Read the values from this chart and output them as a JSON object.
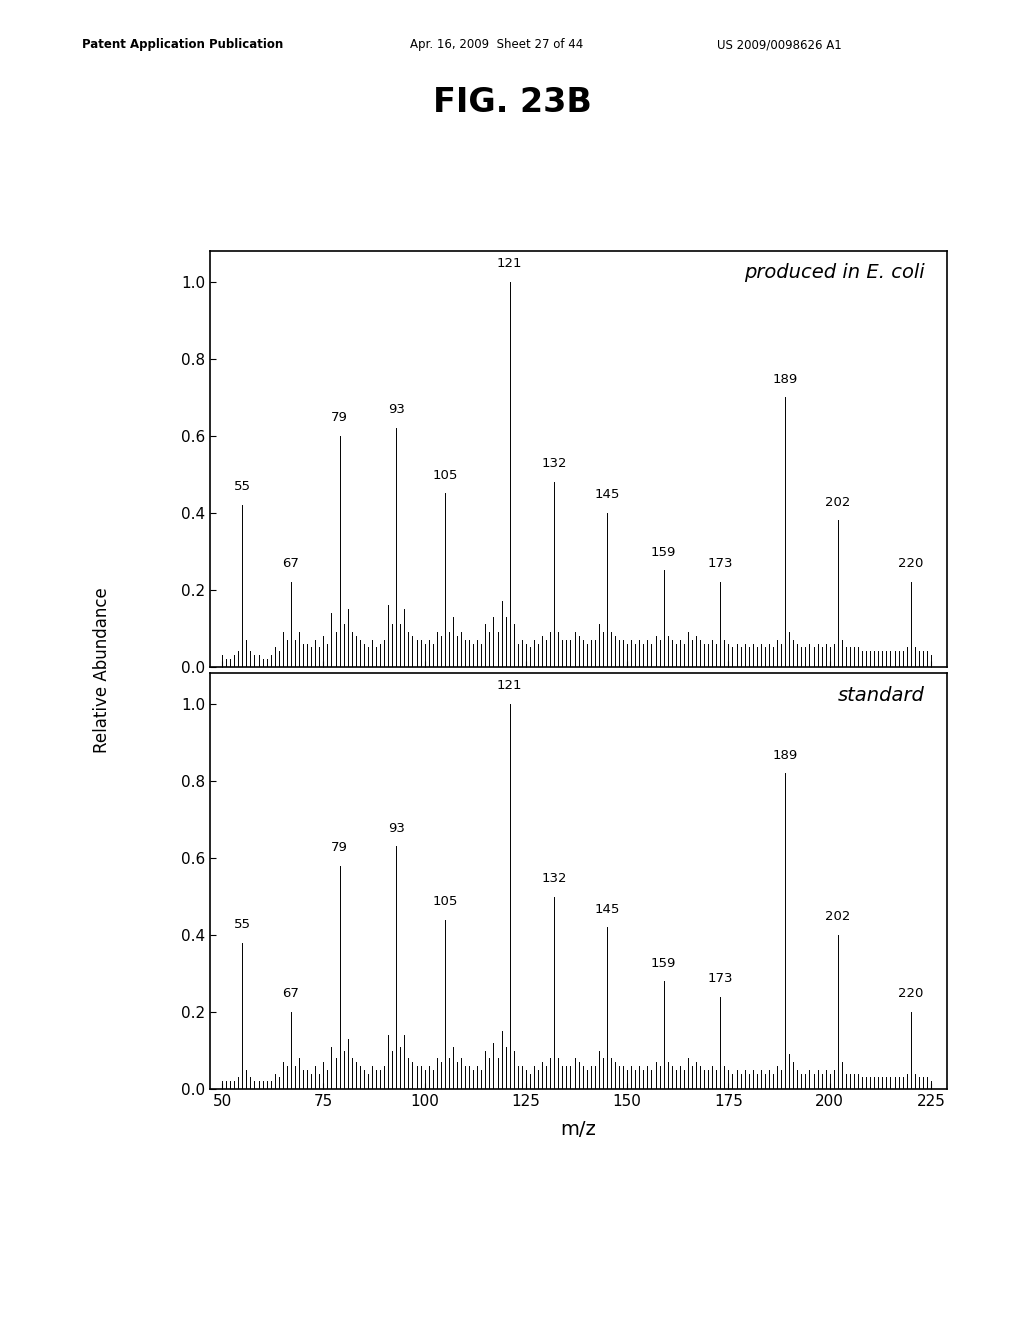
{
  "title": "FIG. 23B",
  "xlabel": "m/z",
  "ylabel": "Relative Abundance",
  "header_left": "Patent Application Publication",
  "header_mid": "Apr. 16, 2009  Sheet 27 of 44",
  "header_right": "US 2009/0098626 A1",
  "panel1_label": "produced in E. coli",
  "panel2_label": "standard",
  "xlim": [
    47,
    229
  ],
  "ylim": [
    0.0,
    1.08
  ],
  "xticks": [
    50,
    75,
    100,
    125,
    150,
    175,
    200,
    225
  ],
  "yticks": [
    0.0,
    0.2,
    0.4,
    0.6,
    0.8,
    1.0
  ],
  "panel1_peaks": [
    [
      50,
      0.03
    ],
    [
      51,
      0.02
    ],
    [
      52,
      0.02
    ],
    [
      53,
      0.03
    ],
    [
      54,
      0.04
    ],
    [
      55,
      0.42
    ],
    [
      56,
      0.07
    ],
    [
      57,
      0.04
    ],
    [
      58,
      0.03
    ],
    [
      59,
      0.03
    ],
    [
      60,
      0.02
    ],
    [
      61,
      0.02
    ],
    [
      62,
      0.03
    ],
    [
      63,
      0.05
    ],
    [
      64,
      0.04
    ],
    [
      65,
      0.09
    ],
    [
      66,
      0.07
    ],
    [
      67,
      0.22
    ],
    [
      68,
      0.07
    ],
    [
      69,
      0.09
    ],
    [
      70,
      0.06
    ],
    [
      71,
      0.06
    ],
    [
      72,
      0.05
    ],
    [
      73,
      0.07
    ],
    [
      74,
      0.05
    ],
    [
      75,
      0.08
    ],
    [
      76,
      0.06
    ],
    [
      77,
      0.14
    ],
    [
      78,
      0.09
    ],
    [
      79,
      0.6
    ],
    [
      80,
      0.11
    ],
    [
      81,
      0.15
    ],
    [
      82,
      0.09
    ],
    [
      83,
      0.08
    ],
    [
      84,
      0.07
    ],
    [
      85,
      0.06
    ],
    [
      86,
      0.05
    ],
    [
      87,
      0.07
    ],
    [
      88,
      0.05
    ],
    [
      89,
      0.06
    ],
    [
      90,
      0.07
    ],
    [
      91,
      0.16
    ],
    [
      92,
      0.11
    ],
    [
      93,
      0.62
    ],
    [
      94,
      0.11
    ],
    [
      95,
      0.15
    ],
    [
      96,
      0.09
    ],
    [
      97,
      0.08
    ],
    [
      98,
      0.07
    ],
    [
      99,
      0.07
    ],
    [
      100,
      0.06
    ],
    [
      101,
      0.07
    ],
    [
      102,
      0.06
    ],
    [
      103,
      0.09
    ],
    [
      104,
      0.08
    ],
    [
      105,
      0.45
    ],
    [
      106,
      0.09
    ],
    [
      107,
      0.13
    ],
    [
      108,
      0.08
    ],
    [
      109,
      0.09
    ],
    [
      110,
      0.07
    ],
    [
      111,
      0.07
    ],
    [
      112,
      0.06
    ],
    [
      113,
      0.07
    ],
    [
      114,
      0.06
    ],
    [
      115,
      0.11
    ],
    [
      116,
      0.09
    ],
    [
      117,
      0.13
    ],
    [
      118,
      0.09
    ],
    [
      119,
      0.17
    ],
    [
      120,
      0.13
    ],
    [
      121,
      1.0
    ],
    [
      122,
      0.11
    ],
    [
      123,
      0.06
    ],
    [
      124,
      0.07
    ],
    [
      125,
      0.06
    ],
    [
      126,
      0.05
    ],
    [
      127,
      0.07
    ],
    [
      128,
      0.06
    ],
    [
      129,
      0.08
    ],
    [
      130,
      0.07
    ],
    [
      131,
      0.09
    ],
    [
      132,
      0.48
    ],
    [
      133,
      0.09
    ],
    [
      134,
      0.07
    ],
    [
      135,
      0.07
    ],
    [
      136,
      0.07
    ],
    [
      137,
      0.09
    ],
    [
      138,
      0.08
    ],
    [
      139,
      0.07
    ],
    [
      140,
      0.06
    ],
    [
      141,
      0.07
    ],
    [
      142,
      0.07
    ],
    [
      143,
      0.11
    ],
    [
      144,
      0.09
    ],
    [
      145,
      0.4
    ],
    [
      146,
      0.09
    ],
    [
      147,
      0.08
    ],
    [
      148,
      0.07
    ],
    [
      149,
      0.07
    ],
    [
      150,
      0.06
    ],
    [
      151,
      0.07
    ],
    [
      152,
      0.06
    ],
    [
      153,
      0.07
    ],
    [
      154,
      0.06
    ],
    [
      155,
      0.07
    ],
    [
      156,
      0.06
    ],
    [
      157,
      0.08
    ],
    [
      158,
      0.07
    ],
    [
      159,
      0.25
    ],
    [
      160,
      0.08
    ],
    [
      161,
      0.07
    ],
    [
      162,
      0.06
    ],
    [
      163,
      0.07
    ],
    [
      164,
      0.06
    ],
    [
      165,
      0.09
    ],
    [
      166,
      0.07
    ],
    [
      167,
      0.08
    ],
    [
      168,
      0.07
    ],
    [
      169,
      0.06
    ],
    [
      170,
      0.06
    ],
    [
      171,
      0.07
    ],
    [
      172,
      0.06
    ],
    [
      173,
      0.22
    ],
    [
      174,
      0.07
    ],
    [
      175,
      0.06
    ],
    [
      176,
      0.05
    ],
    [
      177,
      0.06
    ],
    [
      178,
      0.05
    ],
    [
      179,
      0.06
    ],
    [
      180,
      0.05
    ],
    [
      181,
      0.06
    ],
    [
      182,
      0.05
    ],
    [
      183,
      0.06
    ],
    [
      184,
      0.05
    ],
    [
      185,
      0.06
    ],
    [
      186,
      0.05
    ],
    [
      187,
      0.07
    ],
    [
      188,
      0.06
    ],
    [
      189,
      0.7
    ],
    [
      190,
      0.09
    ],
    [
      191,
      0.07
    ],
    [
      192,
      0.06
    ],
    [
      193,
      0.05
    ],
    [
      194,
      0.05
    ],
    [
      195,
      0.06
    ],
    [
      196,
      0.05
    ],
    [
      197,
      0.06
    ],
    [
      198,
      0.05
    ],
    [
      199,
      0.06
    ],
    [
      200,
      0.05
    ],
    [
      201,
      0.06
    ],
    [
      202,
      0.38
    ],
    [
      203,
      0.07
    ],
    [
      204,
      0.05
    ],
    [
      205,
      0.05
    ],
    [
      206,
      0.05
    ],
    [
      207,
      0.05
    ],
    [
      208,
      0.04
    ],
    [
      209,
      0.04
    ],
    [
      210,
      0.04
    ],
    [
      211,
      0.04
    ],
    [
      212,
      0.04
    ],
    [
      213,
      0.04
    ],
    [
      214,
      0.04
    ],
    [
      215,
      0.04
    ],
    [
      216,
      0.04
    ],
    [
      217,
      0.04
    ],
    [
      218,
      0.04
    ],
    [
      219,
      0.05
    ],
    [
      220,
      0.22
    ],
    [
      221,
      0.05
    ],
    [
      222,
      0.04
    ],
    [
      223,
      0.04
    ],
    [
      224,
      0.04
    ],
    [
      225,
      0.03
    ]
  ],
  "panel2_peaks": [
    [
      50,
      0.02
    ],
    [
      51,
      0.02
    ],
    [
      52,
      0.02
    ],
    [
      53,
      0.02
    ],
    [
      54,
      0.03
    ],
    [
      55,
      0.38
    ],
    [
      56,
      0.05
    ],
    [
      57,
      0.03
    ],
    [
      58,
      0.02
    ],
    [
      59,
      0.02
    ],
    [
      60,
      0.02
    ],
    [
      61,
      0.02
    ],
    [
      62,
      0.02
    ],
    [
      63,
      0.04
    ],
    [
      64,
      0.03
    ],
    [
      65,
      0.07
    ],
    [
      66,
      0.06
    ],
    [
      67,
      0.2
    ],
    [
      68,
      0.06
    ],
    [
      69,
      0.08
    ],
    [
      70,
      0.05
    ],
    [
      71,
      0.05
    ],
    [
      72,
      0.04
    ],
    [
      73,
      0.06
    ],
    [
      74,
      0.04
    ],
    [
      75,
      0.07
    ],
    [
      76,
      0.05
    ],
    [
      77,
      0.11
    ],
    [
      78,
      0.08
    ],
    [
      79,
      0.58
    ],
    [
      80,
      0.1
    ],
    [
      81,
      0.13
    ],
    [
      82,
      0.08
    ],
    [
      83,
      0.07
    ],
    [
      84,
      0.06
    ],
    [
      85,
      0.05
    ],
    [
      86,
      0.04
    ],
    [
      87,
      0.06
    ],
    [
      88,
      0.05
    ],
    [
      89,
      0.05
    ],
    [
      90,
      0.06
    ],
    [
      91,
      0.14
    ],
    [
      92,
      0.1
    ],
    [
      93,
      0.63
    ],
    [
      94,
      0.11
    ],
    [
      95,
      0.14
    ],
    [
      96,
      0.08
    ],
    [
      97,
      0.07
    ],
    [
      98,
      0.06
    ],
    [
      99,
      0.06
    ],
    [
      100,
      0.05
    ],
    [
      101,
      0.06
    ],
    [
      102,
      0.05
    ],
    [
      103,
      0.08
    ],
    [
      104,
      0.07
    ],
    [
      105,
      0.44
    ],
    [
      106,
      0.08
    ],
    [
      107,
      0.11
    ],
    [
      108,
      0.07
    ],
    [
      109,
      0.08
    ],
    [
      110,
      0.06
    ],
    [
      111,
      0.06
    ],
    [
      112,
      0.05
    ],
    [
      113,
      0.06
    ],
    [
      114,
      0.05
    ],
    [
      115,
      0.1
    ],
    [
      116,
      0.08
    ],
    [
      117,
      0.12
    ],
    [
      118,
      0.08
    ],
    [
      119,
      0.15
    ],
    [
      120,
      0.11
    ],
    [
      121,
      1.0
    ],
    [
      122,
      0.1
    ],
    [
      123,
      0.06
    ],
    [
      124,
      0.06
    ],
    [
      125,
      0.05
    ],
    [
      126,
      0.04
    ],
    [
      127,
      0.06
    ],
    [
      128,
      0.05
    ],
    [
      129,
      0.07
    ],
    [
      130,
      0.06
    ],
    [
      131,
      0.08
    ],
    [
      132,
      0.5
    ],
    [
      133,
      0.08
    ],
    [
      134,
      0.06
    ],
    [
      135,
      0.06
    ],
    [
      136,
      0.06
    ],
    [
      137,
      0.08
    ],
    [
      138,
      0.07
    ],
    [
      139,
      0.06
    ],
    [
      140,
      0.05
    ],
    [
      141,
      0.06
    ],
    [
      142,
      0.06
    ],
    [
      143,
      0.1
    ],
    [
      144,
      0.08
    ],
    [
      145,
      0.42
    ],
    [
      146,
      0.08
    ],
    [
      147,
      0.07
    ],
    [
      148,
      0.06
    ],
    [
      149,
      0.06
    ],
    [
      150,
      0.05
    ],
    [
      151,
      0.06
    ],
    [
      152,
      0.05
    ],
    [
      153,
      0.06
    ],
    [
      154,
      0.05
    ],
    [
      155,
      0.06
    ],
    [
      156,
      0.05
    ],
    [
      157,
      0.07
    ],
    [
      158,
      0.06
    ],
    [
      159,
      0.28
    ],
    [
      160,
      0.07
    ],
    [
      161,
      0.06
    ],
    [
      162,
      0.05
    ],
    [
      163,
      0.06
    ],
    [
      164,
      0.05
    ],
    [
      165,
      0.08
    ],
    [
      166,
      0.06
    ],
    [
      167,
      0.07
    ],
    [
      168,
      0.06
    ],
    [
      169,
      0.05
    ],
    [
      170,
      0.05
    ],
    [
      171,
      0.06
    ],
    [
      172,
      0.05
    ],
    [
      173,
      0.24
    ],
    [
      174,
      0.06
    ],
    [
      175,
      0.05
    ],
    [
      176,
      0.04
    ],
    [
      177,
      0.05
    ],
    [
      178,
      0.04
    ],
    [
      179,
      0.05
    ],
    [
      180,
      0.04
    ],
    [
      181,
      0.05
    ],
    [
      182,
      0.04
    ],
    [
      183,
      0.05
    ],
    [
      184,
      0.04
    ],
    [
      185,
      0.05
    ],
    [
      186,
      0.04
    ],
    [
      187,
      0.06
    ],
    [
      188,
      0.05
    ],
    [
      189,
      0.82
    ],
    [
      190,
      0.09
    ],
    [
      191,
      0.07
    ],
    [
      192,
      0.05
    ],
    [
      193,
      0.04
    ],
    [
      194,
      0.04
    ],
    [
      195,
      0.05
    ],
    [
      196,
      0.04
    ],
    [
      197,
      0.05
    ],
    [
      198,
      0.04
    ],
    [
      199,
      0.05
    ],
    [
      200,
      0.04
    ],
    [
      201,
      0.05
    ],
    [
      202,
      0.4
    ],
    [
      203,
      0.07
    ],
    [
      204,
      0.04
    ],
    [
      205,
      0.04
    ],
    [
      206,
      0.04
    ],
    [
      207,
      0.04
    ],
    [
      208,
      0.03
    ],
    [
      209,
      0.03
    ],
    [
      210,
      0.03
    ],
    [
      211,
      0.03
    ],
    [
      212,
      0.03
    ],
    [
      213,
      0.03
    ],
    [
      214,
      0.03
    ],
    [
      215,
      0.03
    ],
    [
      216,
      0.03
    ],
    [
      217,
      0.03
    ],
    [
      218,
      0.03
    ],
    [
      219,
      0.04
    ],
    [
      220,
      0.2
    ],
    [
      221,
      0.04
    ],
    [
      222,
      0.03
    ],
    [
      223,
      0.03
    ],
    [
      224,
      0.03
    ],
    [
      225,
      0.02
    ]
  ],
  "panel1_labels": [
    [
      55,
      0.42,
      "55",
      "left"
    ],
    [
      67,
      0.22,
      "67",
      "center"
    ],
    [
      79,
      0.6,
      "79",
      "center"
    ],
    [
      93,
      0.62,
      "93",
      "center"
    ],
    [
      105,
      0.45,
      "105",
      "center"
    ],
    [
      121,
      1.0,
      "121",
      "center"
    ],
    [
      132,
      0.48,
      "132",
      "center"
    ],
    [
      145,
      0.4,
      "145",
      "center"
    ],
    [
      159,
      0.25,
      "159",
      "center"
    ],
    [
      173,
      0.22,
      "173",
      "center"
    ],
    [
      189,
      0.7,
      "189",
      "center"
    ],
    [
      202,
      0.38,
      "202",
      "center"
    ],
    [
      220,
      0.22,
      "220",
      "center"
    ]
  ],
  "panel2_labels": [
    [
      55,
      0.38,
      "55",
      "left"
    ],
    [
      67,
      0.2,
      "67",
      "center"
    ],
    [
      79,
      0.58,
      "79",
      "center"
    ],
    [
      93,
      0.63,
      "93",
      "center"
    ],
    [
      105,
      0.44,
      "105",
      "center"
    ],
    [
      121,
      1.0,
      "121",
      "center"
    ],
    [
      132,
      0.5,
      "132",
      "center"
    ],
    [
      145,
      0.42,
      "145",
      "center"
    ],
    [
      159,
      0.28,
      "159",
      "center"
    ],
    [
      173,
      0.24,
      "173",
      "center"
    ],
    [
      189,
      0.82,
      "189",
      "center"
    ],
    [
      202,
      0.4,
      "202",
      "center"
    ],
    [
      220,
      0.2,
      "220",
      "center"
    ]
  ]
}
